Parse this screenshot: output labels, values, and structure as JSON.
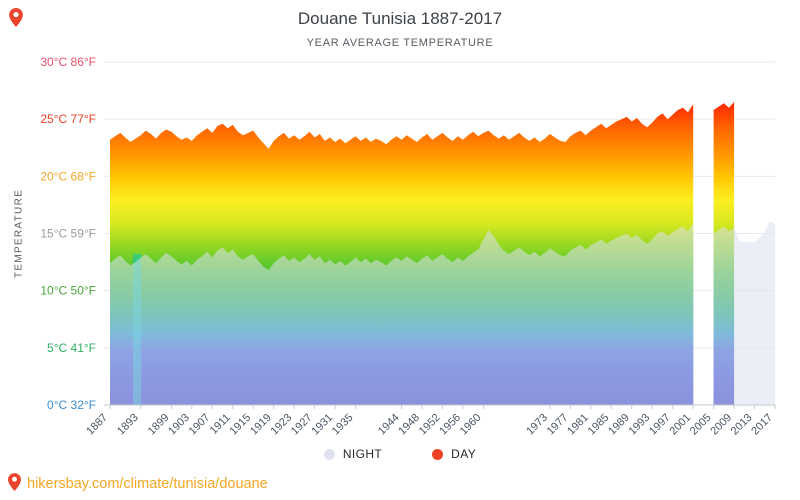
{
  "header": {
    "title": "Douane Tunisia 1887-2017",
    "subtitle": "YEAR AVERAGE TEMPERATURE"
  },
  "y_axis_label": "TEMPERATURE",
  "legend": {
    "night_label": "NIGHT",
    "night_color": "#dfe3f0",
    "day_label": "DAY",
    "day_color": "#ee4323"
  },
  "footer": {
    "url": "hikersbay.com/climate/tunisia/douane",
    "color": "#f5a623",
    "pin_color": "#e8442e"
  },
  "chart_data": {
    "type": "area",
    "title": "Douane Tunisia 1887-2017",
    "subtitle": "YEAR AVERAGE TEMPERATURE",
    "ylabel": "TEMPERATURE",
    "ylim": [
      0,
      30
    ],
    "x_start": 1887,
    "x_end": 2017,
    "grid": true,
    "legend_position": "bottom",
    "x_tick_labels": [
      "1887",
      "1893",
      "1899",
      "1903",
      "1907",
      "1911",
      "1915",
      "1919",
      "1923",
      "1927",
      "1931",
      "1935",
      "1944",
      "1948",
      "1952",
      "1956",
      "1960",
      "1973",
      "1977",
      "1981",
      "1985",
      "1989",
      "1993",
      "1997",
      "2001",
      "2005",
      "2009",
      "2013",
      "2017"
    ],
    "y_ticks": [
      {
        "label": "30°C 86°F",
        "temp": 30,
        "color": "#e8506a"
      },
      {
        "label": "25°C 77°F",
        "temp": 25,
        "color": "#ee3f23"
      },
      {
        "label": "20°C 68°F",
        "temp": 20,
        "color": "#f5a623"
      },
      {
        "label": "15°C 59°F",
        "temp": 15,
        "color": "#9b9b9b"
      },
      {
        "label": "10°C 50°F",
        "temp": 10,
        "color": "#47a836"
      },
      {
        "label": "5°C 41°F",
        "temp": 5,
        "color": "#2fae60"
      },
      {
        "label": "0°C 32°F",
        "temp": 0,
        "color": "#3e8ed0"
      }
    ],
    "series": [
      {
        "name": "DAY",
        "style": "rainbow",
        "values": [
          23.2,
          23.5,
          23.8,
          23.4,
          23.0,
          23.3,
          23.6,
          24.0,
          23.7,
          23.3,
          23.8,
          24.1,
          23.9,
          23.5,
          23.2,
          23.4,
          23.1,
          23.6,
          23.9,
          24.2,
          23.8,
          24.4,
          24.6,
          24.2,
          24.5,
          23.9,
          23.6,
          23.8,
          24.0,
          23.4,
          22.9,
          22.4,
          23.1,
          23.5,
          23.8,
          23.3,
          23.6,
          23.2,
          23.5,
          23.9,
          23.4,
          23.7,
          23.1,
          23.4,
          23.0,
          23.3,
          22.9,
          23.2,
          23.5,
          23.1,
          23.4,
          23.0,
          23.3,
          23.1,
          22.8,
          23.2,
          23.5,
          23.2,
          23.6,
          23.3,
          23.0,
          23.4,
          23.7,
          23.2,
          23.5,
          23.8,
          23.4,
          23.1,
          23.5,
          23.2,
          23.6,
          23.9,
          23.5,
          23.8,
          24.0,
          23.6,
          23.3,
          23.6,
          23.2,
          23.5,
          23.8,
          23.4,
          23.1,
          23.4,
          23.0,
          23.3,
          23.7,
          23.4,
          23.1,
          23.0,
          23.5,
          23.8,
          24.0,
          23.6,
          24.0,
          24.3,
          24.6,
          24.2,
          24.5,
          24.8,
          25.0,
          25.2,
          24.8,
          25.1,
          24.6,
          24.3,
          24.7,
          25.2,
          25.5,
          25.0,
          25.4,
          25.8,
          26.0,
          25.6,
          26.3,
          null,
          null,
          null,
          25.8,
          26.1,
          26.4,
          26.0,
          26.5,
          null,
          null,
          null,
          null,
          null,
          null,
          null,
          null
        ]
      },
      {
        "name": "NIGHT",
        "style": "overlay",
        "fill": "#dce0f0",
        "opacity": 0.55,
        "values": [
          12.4,
          12.8,
          13.1,
          12.6,
          12.2,
          12.5,
          12.9,
          13.2,
          12.8,
          12.4,
          12.9,
          13.3,
          13.0,
          12.6,
          12.3,
          12.6,
          12.2,
          12.7,
          13.0,
          13.4,
          12.9,
          13.5,
          13.8,
          13.3,
          13.6,
          13.0,
          12.7,
          13.0,
          13.2,
          12.6,
          12.1,
          11.8,
          12.4,
          12.8,
          13.1,
          12.6,
          12.9,
          12.5,
          12.8,
          13.2,
          12.7,
          13.0,
          12.4,
          12.7,
          12.3,
          12.6,
          12.2,
          12.5,
          12.9,
          12.5,
          12.8,
          12.4,
          12.7,
          12.5,
          12.2,
          12.6,
          12.9,
          12.6,
          13.0,
          12.7,
          12.4,
          12.8,
          13.1,
          12.6,
          12.9,
          13.2,
          12.8,
          12.5,
          12.9,
          12.6,
          13.0,
          13.3,
          13.6,
          14.5,
          15.3,
          14.8,
          14.0,
          13.5,
          13.2,
          13.5,
          13.8,
          13.4,
          13.1,
          13.4,
          13.0,
          13.3,
          13.7,
          13.4,
          13.1,
          13.0,
          13.5,
          13.8,
          14.0,
          13.6,
          14.0,
          14.2,
          14.5,
          14.1,
          14.4,
          14.6,
          14.8,
          15.0,
          14.6,
          14.9,
          14.4,
          14.1,
          14.5,
          15.0,
          15.2,
          14.8,
          15.1,
          15.4,
          15.6,
          15.2,
          15.9,
          null,
          null,
          null,
          15.0,
          15.3,
          15.6,
          15.2,
          15.5,
          14.4,
          14.2,
          14.3,
          14.2,
          14.6,
          15.2,
          16.1,
          15.8
        ]
      }
    ],
    "gradient_stops": [
      {
        "offset": 0,
        "color": "#d40000"
      },
      {
        "offset": 12,
        "color": "#ff2800"
      },
      {
        "offset": 20,
        "color": "#ff6a00"
      },
      {
        "offset": 28,
        "color": "#ff9e00"
      },
      {
        "offset": 34,
        "color": "#ffc800"
      },
      {
        "offset": 40,
        "color": "#fcee21"
      },
      {
        "offset": 47,
        "color": "#d9e821"
      },
      {
        "offset": 54,
        "color": "#8fd622"
      },
      {
        "offset": 61,
        "color": "#4cc432"
      },
      {
        "offset": 68,
        "color": "#23b14d"
      },
      {
        "offset": 74,
        "color": "#0ba47c"
      },
      {
        "offset": 79,
        "color": "#0e8fbe"
      },
      {
        "offset": 84,
        "color": "#2f5cd6"
      },
      {
        "offset": 92,
        "color": "#2b42cf"
      },
      {
        "offset": 100,
        "color": "#2a32c4"
      }
    ],
    "anomaly_band": {
      "x_from": 1891.5,
      "x_to": 1893.1,
      "temp_top": 13.2,
      "color": "#00c9c9",
      "opacity": 0.5
    }
  }
}
